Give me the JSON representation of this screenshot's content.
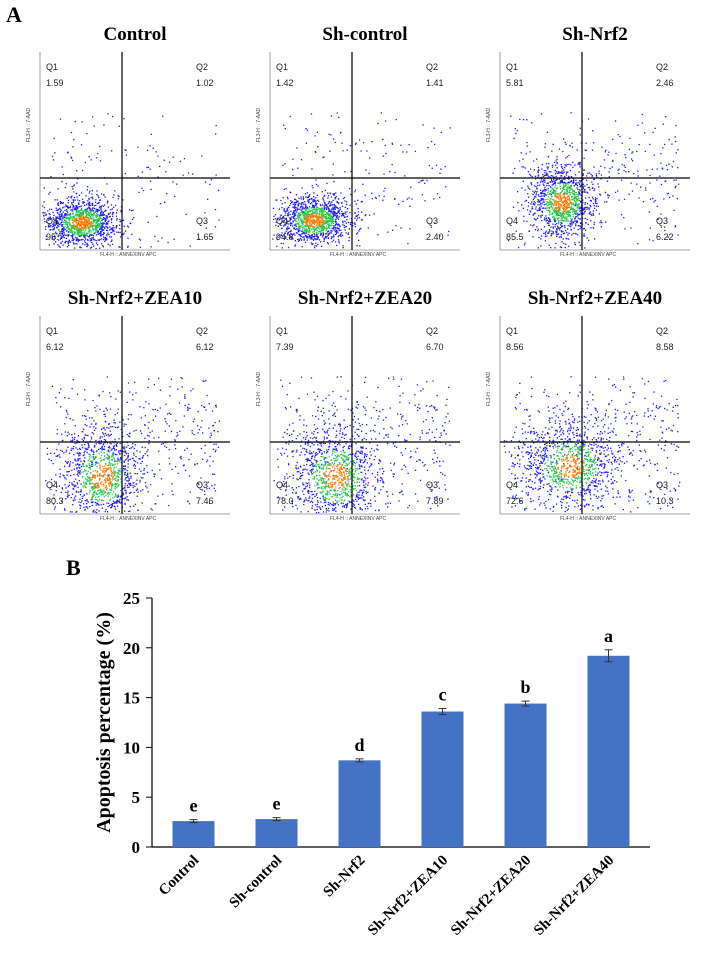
{
  "panel_letters": {
    "a": "A",
    "b": "B"
  },
  "colors": {
    "bar": "#4472C4",
    "density_low": "#1a1aff",
    "density_mid": "#28c94a",
    "density_high": "#ff7a00"
  },
  "flow": {
    "x_axis_caption": "FL4-H :: ANNEXINV APC",
    "y_axis_caption": "FL3-H :: 7-AAD",
    "panels": [
      {
        "title": "Control",
        "q1": "Q1",
        "q1v": "1.59",
        "q2": "Q2",
        "q2v": "1.02",
        "q3": "Q3",
        "q3v": "1.65",
        "q4": "Q4",
        "q4v": "95.7"
      },
      {
        "title": "Sh-control",
        "q1": "Q1",
        "q1v": "1.42",
        "q2": "Q2",
        "q2v": "1.41",
        "q3": "Q3",
        "q3v": "2.40",
        "q4": "Q4",
        "q4v": "94.8"
      },
      {
        "title": "Sh-Nrf2",
        "q1": "Q1",
        "q1v": "5.81",
        "q2": "Q2",
        "q2v": "2.46",
        "q3": "Q3",
        "q3v": "6.22",
        "q4": "Q4",
        "q4v": "85.5"
      },
      {
        "title": "Sh-Nrf2+ZEA10",
        "q1": "Q1",
        "q1v": "6.12",
        "q2": "Q2",
        "q2v": "6.12",
        "q3": "Q3",
        "q3v": "7.46",
        "q4": "Q4",
        "q4v": "80.3"
      },
      {
        "title": "Sh-Nrf2+ZEA20",
        "q1": "Q1",
        "q1v": "7.39",
        "q2": "Q2",
        "q2v": "6.70",
        "q3": "Q3",
        "q3v": "7.89",
        "q4": "Q4",
        "q4v": "78.0"
      },
      {
        "title": "Sh-Nrf2+ZEA40",
        "q1": "Q1",
        "q1v": "8.56",
        "q2": "Q2",
        "q2v": "8.58",
        "q3": "Q3",
        "q3v": "10.3",
        "q4": "Q4",
        "q4v": "72.6"
      }
    ]
  },
  "chart_data": {
    "type": "bar",
    "title": "",
    "xlabel": "",
    "ylabel": "Apoptosis percentage (%)",
    "ylim": [
      0,
      25
    ],
    "yticks": [
      0,
      5,
      10,
      15,
      20,
      25
    ],
    "categories": [
      "Control",
      "Sh-control",
      "Sh-Nrf2",
      "Sh-Nrf2+ZEA10",
      "Sh-Nrf2+ZEA20",
      "Sh-Nrf2+ZEA40"
    ],
    "values": [
      2.6,
      2.8,
      8.7,
      13.6,
      14.4,
      19.2
    ],
    "errors": [
      0.15,
      0.15,
      0.15,
      0.3,
      0.25,
      0.6
    ],
    "significance_letters": [
      "e",
      "e",
      "d",
      "c",
      "b",
      "a"
    ],
    "grid": false
  }
}
